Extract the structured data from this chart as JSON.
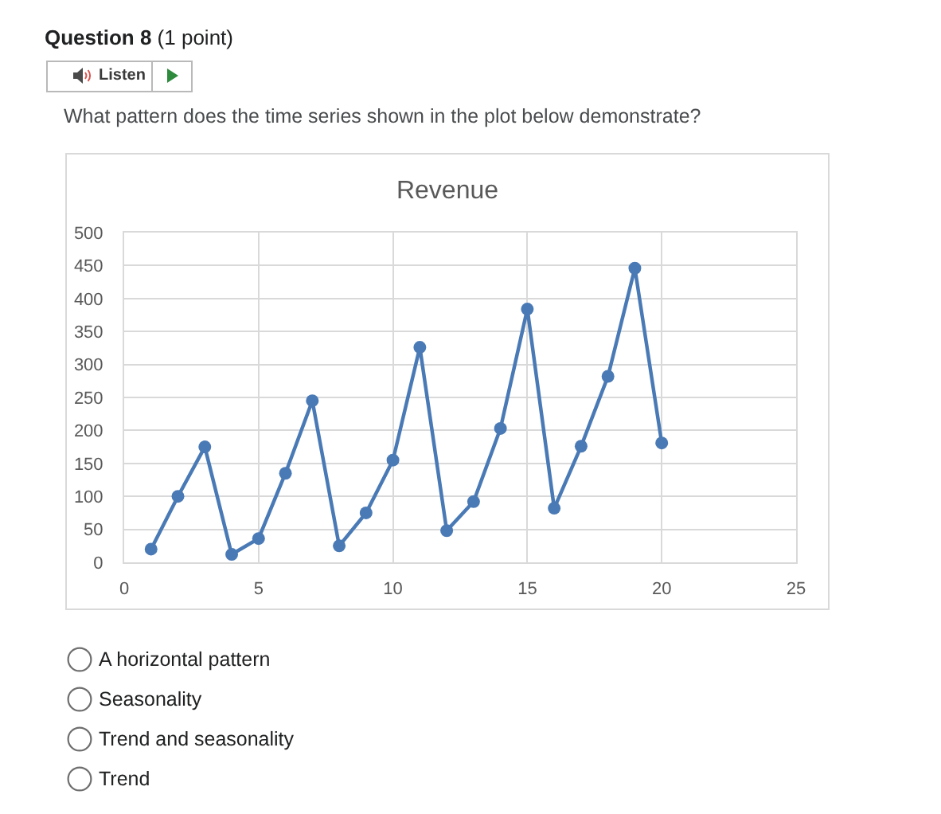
{
  "chart_data": {
    "type": "line",
    "title": "Revenue",
    "annotations": [
      "Question 8",
      "(1 point)",
      "Listen",
      "What pattern does the time series shown in the plot below demonstrate?",
      "A horizontal pattern",
      "Seasonality",
      "Trend and seasonality",
      "Trend"
    ],
    "x": [
      1,
      2,
      3,
      4,
      5,
      6,
      7,
      8,
      9,
      10,
      11,
      12,
      13,
      14,
      15,
      16,
      17,
      18,
      19,
      20
    ],
    "values": [
      20,
      100,
      175,
      12,
      36,
      135,
      245,
      25,
      75,
      155,
      326,
      48,
      92,
      203,
      384,
      82,
      176,
      282,
      446,
      181
    ],
    "color": "#4a7ab5",
    "xlim": [
      0,
      25
    ],
    "xticks": [
      0,
      5,
      10,
      15,
      20,
      25
    ],
    "ylim": [
      0,
      500
    ],
    "yticks": [
      0,
      50,
      100,
      150,
      200,
      250,
      300,
      350,
      400,
      450,
      500
    ],
    "grid": true,
    "marker": "circle",
    "line_style": "solid"
  }
}
